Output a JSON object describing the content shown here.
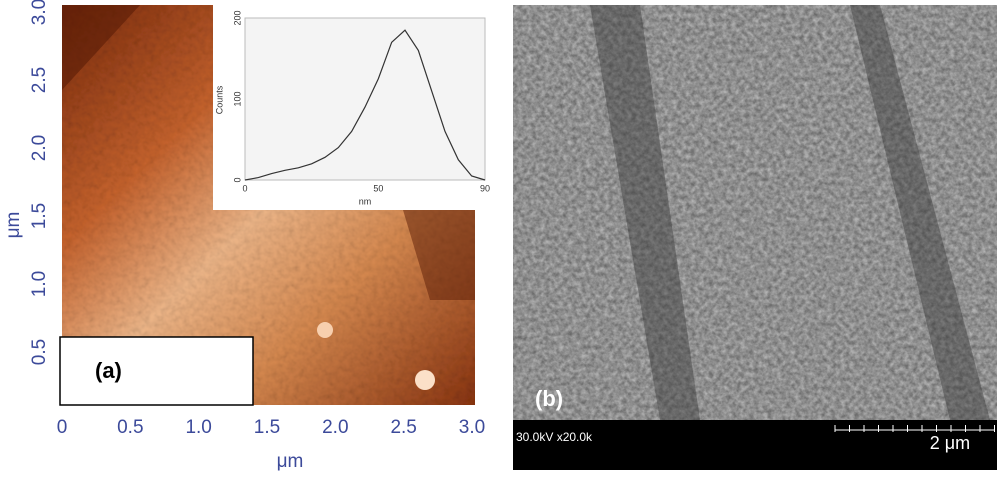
{
  "panel_a": {
    "label": "(a)",
    "x_axis_label": "μm",
    "y_axis_label": "μm",
    "xlim": [
      0,
      3.0
    ],
    "ylim": [
      0,
      3.0
    ],
    "xticks": [
      0,
      {
        "value": 0.5,
        "label": "0.5"
      },
      {
        "value": 1,
        "label": "1.0"
      },
      {
        "value": 1.5,
        "label": "1.5"
      },
      {
        "value": 2,
        "label": "2.0"
      },
      {
        "value": 2.5,
        "label": "2.5"
      },
      {
        "value": 3,
        "label": "3.0"
      }
    ],
    "yticks": [
      {
        "value": 0.5,
        "label": "0.5"
      },
      {
        "value": 1,
        "label": "1.0"
      },
      {
        "value": 1.5,
        "label": "1.5"
      },
      {
        "value": 2,
        "label": "2.0"
      },
      {
        "value": 2.5,
        "label": "2.5"
      },
      {
        "value": 3,
        "label": "3.0"
      }
    ],
    "inset": {
      "type": "line",
      "x_axis_label": "nm",
      "y_axis_label": "Counts",
      "xlim": [
        0,
        90
      ],
      "ylim": [
        0,
        200
      ],
      "xticks": [
        0,
        50,
        90
      ],
      "yticks": [
        0,
        100,
        200
      ],
      "color": "#333333",
      "x": [
        0,
        5,
        10,
        15,
        20,
        25,
        30,
        35,
        40,
        45,
        50,
        55,
        60,
        65,
        70,
        75,
        80,
        85,
        90
      ],
      "values": [
        0,
        3,
        8,
        12,
        15,
        20,
        28,
        40,
        60,
        90,
        125,
        170,
        185,
        160,
        110,
        60,
        25,
        5,
        0
      ]
    }
  },
  "panel_b": {
    "label": "(b)",
    "info": "30.0kV x20.0k",
    "scale_label": "2 μm"
  }
}
